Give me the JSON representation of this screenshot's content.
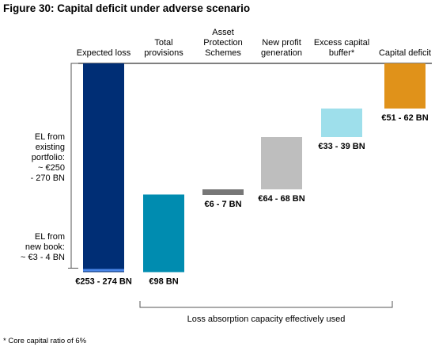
{
  "figure_title": "Figure 30: Capital deficit under adverse scenario",
  "footnote": "* Core capital ratio of 6%",
  "chart_data": {
    "type": "waterfall",
    "unit": "€ BN",
    "columns": [
      {
        "label": [
          "Expected loss"
        ],
        "low": 253,
        "high": 274,
        "value_label": "€253 - 274 BN",
        "color": "#002E75"
      },
      {
        "label": [
          "Total",
          "provisions"
        ],
        "low": 98,
        "high": 98,
        "value_label": "€98 BN",
        "color": "#008CB0"
      },
      {
        "label": [
          "Asset",
          "Protection",
          "Schemes"
        ],
        "low": 6,
        "high": 7,
        "value_label": "€6 - 7 BN",
        "color": "#777777"
      },
      {
        "label": [
          "New profit",
          "generation"
        ],
        "low": 64,
        "high": 68,
        "value_label": "€64 - 68 BN",
        "color": "#BEBEBE"
      },
      {
        "label": [
          "Excess capital",
          "buffer*"
        ],
        "low": 33,
        "high": 39,
        "value_label": "€33 - 39 BN",
        "color": "#9EDFEB"
      },
      {
        "label": [
          "Capital deficit"
        ],
        "low": 51,
        "high": 62,
        "value_label": "€51 - 62 BN",
        "color": "#E0921A"
      }
    ],
    "expected_loss_breakdown": [
      {
        "label": [
          "EL from",
          "existing",
          "portfolio:",
          "~ €250",
          "- 270 BN"
        ],
        "value_range": [
          250,
          270
        ],
        "color": "#002E75"
      },
      {
        "label": [
          "EL from",
          "new book:",
          "~ €3 - 4 BN"
        ],
        "value_range": [
          3,
          4
        ],
        "color": "#4A86E8"
      }
    ],
    "bracket_label": "Loss absorption capacity effectively used"
  }
}
